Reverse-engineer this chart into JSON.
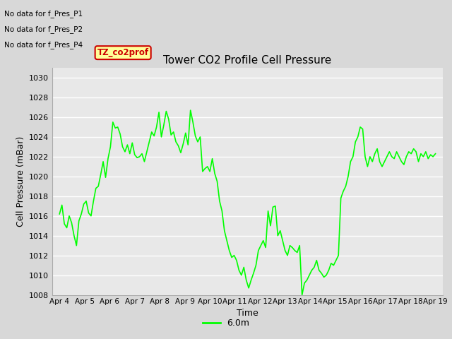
{
  "title": "Tower CO2 Profile Cell Pressure",
  "xlabel": "Time",
  "ylabel": "Cell Pressure (mBar)",
  "ylim": [
    1008,
    1031
  ],
  "yticks": [
    1008,
    1010,
    1012,
    1014,
    1016,
    1018,
    1020,
    1022,
    1024,
    1026,
    1028,
    1030
  ],
  "line_color": "#00ff00",
  "line_width": 1.2,
  "bg_color": "#d8d8d8",
  "plot_bg_color": "#e8e8e8",
  "grid_color": "#ffffff",
  "legend_label": "6.0m",
  "no_data_texts": [
    "No data for f_Pres_P1",
    "No data for f_Pres_P2",
    "No data for f_Pres_P4"
  ],
  "tooltip_text": "TZ_co2prof",
  "tooltip_bg": "#ffff99",
  "tooltip_border": "#cc0000",
  "x_labels": [
    "Apr 4",
    "Apr 5",
    "Apr 6",
    "Apr 7",
    "Apr 8",
    "Apr 9",
    "Apr 10",
    "Apr 11",
    "Apr 12",
    "Apr 13",
    "Apr 14",
    "Apr 15",
    "Apr 16",
    "Apr 17",
    "Apr 18",
    "Apr 19"
  ],
  "y_data": [
    1016.2,
    1017.1,
    1015.2,
    1014.8,
    1016.0,
    1015.3,
    1014.0,
    1013.0,
    1015.5,
    1016.2,
    1017.2,
    1017.5,
    1016.3,
    1016.0,
    1017.5,
    1018.8,
    1019.0,
    1020.2,
    1021.5,
    1019.9,
    1021.8,
    1023.0,
    1025.5,
    1024.9,
    1025.0,
    1024.3,
    1023.0,
    1022.5,
    1023.2,
    1022.3,
    1023.4,
    1022.2,
    1021.9,
    1022.0,
    1022.3,
    1021.5,
    1022.5,
    1023.5,
    1024.5,
    1024.1,
    1025.0,
    1026.5,
    1024.0,
    1025.2,
    1026.6,
    1025.8,
    1024.2,
    1024.5,
    1023.5,
    1023.1,
    1022.4,
    1023.3,
    1024.4,
    1023.2,
    1026.7,
    1025.5,
    1024.1,
    1023.5,
    1024.0,
    1020.5,
    1020.8,
    1021.0,
    1020.5,
    1021.8,
    1020.3,
    1019.5,
    1017.5,
    1016.5,
    1014.5,
    1013.5,
    1012.5,
    1011.8,
    1012.0,
    1011.5,
    1010.5,
    1010.0,
    1010.8,
    1009.5,
    1008.7,
    1009.5,
    1010.2,
    1011.0,
    1012.5,
    1013.0,
    1013.5,
    1012.8,
    1016.5,
    1015.0,
    1016.9,
    1017.0,
    1014.0,
    1014.5,
    1013.5,
    1012.5,
    1012.0,
    1013.0,
    1012.8,
    1012.5,
    1012.3,
    1013.0,
    1008.0,
    1009.2,
    1009.5,
    1010.0,
    1010.5,
    1010.8,
    1011.5,
    1010.5,
    1010.2,
    1009.8,
    1010.0,
    1010.5,
    1011.2,
    1011.0,
    1011.5,
    1012.0,
    1017.8,
    1018.5,
    1019.0,
    1020.0,
    1021.5,
    1022.0,
    1023.5,
    1024.0,
    1025.0,
    1024.8,
    1022.0,
    1021.0,
    1022.0,
    1021.5,
    1022.3,
    1022.8,
    1021.5,
    1021.0,
    1021.5,
    1022.0,
    1022.5,
    1022.0,
    1021.8,
    1022.5,
    1022.0,
    1021.5,
    1021.2,
    1022.0,
    1022.5,
    1022.3,
    1022.8,
    1022.5,
    1021.5,
    1022.3,
    1022.0,
    1022.5,
    1021.8,
    1022.2,
    1022.0,
    1022.3
  ]
}
